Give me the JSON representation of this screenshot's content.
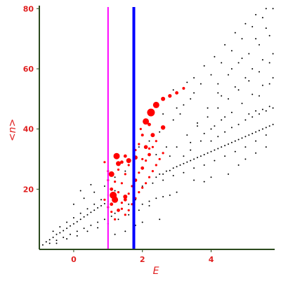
{
  "chart_data": {
    "type": "scatter",
    "xlabel": "E",
    "ylabel": "<n>",
    "xlim": [
      -1.0,
      5.85
    ],
    "ylim": [
      0,
      81
    ],
    "x_ticks": [
      0,
      2,
      4
    ],
    "x_tick_labels": [
      "0",
      "2",
      "4"
    ],
    "y_ticks": [
      20,
      40,
      60,
      80
    ],
    "y_tick_labels": [
      "20",
      "40",
      "60",
      "80"
    ],
    "grid": false,
    "legend": "none",
    "colors": {
      "axes": "#2b4a1d",
      "labels": "#e02020",
      "background_points": "#000000",
      "highlight_points": "#ff0000",
      "magenta_line": "#ff00ff",
      "blue_line": "#0000ff"
    },
    "vertical_lines": [
      {
        "x": 1.0,
        "color": "#ff00ff",
        "style": "thin"
      },
      {
        "x": 1.75,
        "color": "#0000ff",
        "style": "thick"
      }
    ],
    "series": [
      {
        "color": "#000000",
        "marker": "dot",
        "points": [
          [
            -0.9,
            1.5
          ],
          [
            -0.8,
            2.5
          ],
          [
            -0.7,
            3.2
          ],
          [
            -0.6,
            4.0
          ],
          [
            -0.5,
            5.0
          ],
          [
            -0.4,
            5.5
          ],
          [
            -0.3,
            6.2
          ],
          [
            -0.2,
            7.0
          ],
          [
            -0.1,
            7.8
          ],
          [
            0.0,
            8.5
          ],
          [
            0.1,
            9.2
          ],
          [
            0.2,
            10.0
          ],
          [
            0.3,
            10.8
          ],
          [
            0.4,
            11.5
          ],
          [
            0.5,
            12.3
          ],
          [
            0.6,
            13.0
          ],
          [
            0.7,
            13.8
          ],
          [
            0.8,
            14.5
          ],
          [
            0.9,
            15.2
          ],
          [
            1.0,
            16.0
          ],
          [
            -0.7,
            2.0
          ],
          [
            -0.5,
            3.0
          ],
          [
            -0.3,
            4.0
          ],
          [
            -0.1,
            5.0
          ],
          [
            0.1,
            6.0
          ],
          [
            0.3,
            7.0
          ],
          [
            0.5,
            8.0
          ],
          [
            0.7,
            9.0
          ],
          [
            0.9,
            10.0
          ],
          [
            1.1,
            11.0
          ],
          [
            -0.6,
            6.0
          ],
          [
            -0.4,
            7.5
          ],
          [
            -0.2,
            9.0
          ],
          [
            0.0,
            10.5
          ],
          [
            0.2,
            12.0
          ],
          [
            0.4,
            13.5
          ],
          [
            0.6,
            15.0
          ],
          [
            0.8,
            16.5
          ],
          [
            1.0,
            18.0
          ],
          [
            1.2,
            19.5
          ],
          [
            -0.5,
            2.0
          ],
          [
            -0.2,
            3.5
          ],
          [
            0.1,
            4.5
          ],
          [
            0.4,
            6.0
          ],
          [
            0.7,
            7.2
          ],
          [
            1.0,
            8.5
          ],
          [
            1.3,
            10.0
          ],
          [
            1.6,
            11.5
          ],
          [
            1.9,
            13.0
          ],
          [
            2.2,
            14.5
          ],
          [
            0.0,
            15.0
          ],
          [
            0.3,
            17.0
          ],
          [
            0.6,
            19.0
          ],
          [
            0.9,
            21.0
          ],
          [
            0.2,
            19.5
          ],
          [
            0.5,
            21.5
          ],
          [
            1.2,
            24.0
          ],
          [
            1.5,
            26.0
          ],
          [
            1.2,
            12.0
          ],
          [
            1.4,
            13.5
          ],
          [
            1.6,
            15.0
          ],
          [
            1.8,
            16.5
          ],
          [
            2.0,
            15.0
          ],
          [
            2.2,
            16.0
          ],
          [
            2.4,
            17.0
          ],
          [
            2.6,
            17.5
          ],
          [
            2.8,
            18.0
          ],
          [
            3.0,
            19.0
          ],
          [
            2.0,
            21.0
          ],
          [
            2.3,
            22.0
          ],
          [
            2.6,
            23.0
          ],
          [
            2.9,
            24.5
          ],
          [
            3.2,
            25.5
          ],
          [
            3.5,
            27.0
          ],
          [
            3.8,
            28.0
          ],
          [
            4.1,
            29.5
          ],
          [
            4.4,
            31.0
          ],
          [
            4.7,
            32.5
          ],
          [
            5.0,
            34.0
          ],
          [
            5.3,
            36.0
          ],
          [
            5.6,
            38.0
          ],
          [
            2.5,
            25.0
          ],
          [
            2.7,
            26.0
          ],
          [
            2.9,
            27.0
          ],
          [
            3.1,
            28.0
          ],
          [
            3.3,
            29.0
          ],
          [
            3.5,
            30.0
          ],
          [
            3.7,
            31.0
          ],
          [
            3.9,
            32.0
          ],
          [
            4.1,
            33.0
          ],
          [
            4.3,
            34.0
          ],
          [
            4.5,
            35.0
          ],
          [
            4.7,
            36.0
          ],
          [
            4.9,
            37.0
          ],
          [
            5.1,
            38.0
          ],
          [
            5.3,
            39.0
          ],
          [
            5.5,
            40.0
          ],
          [
            5.7,
            41.0
          ],
          [
            2.4,
            24.0
          ],
          [
            2.6,
            25.0
          ],
          [
            2.8,
            26.2
          ],
          [
            3.0,
            27.5
          ],
          [
            3.2,
            28.5
          ],
          [
            3.4,
            29.5
          ],
          [
            3.6,
            30.5
          ],
          [
            3.8,
            31.5
          ],
          [
            4.0,
            32.5
          ],
          [
            4.2,
            33.5
          ],
          [
            4.4,
            34.5
          ],
          [
            4.6,
            35.5
          ],
          [
            4.8,
            36.5
          ],
          [
            5.0,
            37.5
          ],
          [
            5.2,
            38.5
          ],
          [
            5.4,
            39.5
          ],
          [
            5.6,
            40.5
          ],
          [
            5.8,
            41.5
          ],
          [
            4.0,
            36.0
          ],
          [
            4.2,
            37.5
          ],
          [
            4.4,
            39.0
          ],
          [
            4.6,
            40.5
          ],
          [
            4.8,
            41.5
          ],
          [
            5.0,
            43.0
          ],
          [
            5.2,
            44.0
          ],
          [
            5.4,
            45.0
          ],
          [
            5.6,
            46.0
          ],
          [
            5.8,
            47.0
          ],
          [
            5.1,
            45.0
          ],
          [
            5.3,
            46.0
          ],
          [
            5.5,
            46.5
          ],
          [
            5.7,
            47.5
          ],
          [
            2.8,
            31.0
          ],
          [
            3.0,
            34.0
          ],
          [
            3.3,
            38.0
          ],
          [
            3.6,
            41.0
          ],
          [
            3.9,
            44.0
          ],
          [
            4.2,
            47.0
          ],
          [
            4.5,
            50.0
          ],
          [
            4.8,
            53.0
          ],
          [
            5.1,
            56.0
          ],
          [
            5.4,
            59.0
          ],
          [
            5.7,
            62.0
          ],
          [
            3.4,
            33.0
          ],
          [
            3.7,
            36.0
          ],
          [
            4.0,
            40.0
          ],
          [
            4.3,
            43.0
          ],
          [
            4.6,
            45.5
          ],
          [
            4.9,
            48.5
          ],
          [
            5.2,
            51.5
          ],
          [
            5.5,
            54.5
          ],
          [
            5.8,
            57.0
          ],
          [
            3.1,
            45.0
          ],
          [
            3.4,
            50.0
          ],
          [
            3.7,
            55.0
          ],
          [
            4.0,
            58.0
          ],
          [
            4.3,
            62.0
          ],
          [
            4.6,
            66.0
          ],
          [
            4.9,
            70.0
          ],
          [
            5.2,
            74.0
          ],
          [
            5.5,
            77.0
          ],
          [
            5.8,
            80.0
          ],
          [
            3.5,
            57.0
          ],
          [
            3.8,
            61.0
          ],
          [
            4.1,
            64.0
          ],
          [
            4.4,
            68.0
          ],
          [
            4.7,
            72.0
          ],
          [
            5.0,
            75.0
          ],
          [
            5.3,
            78.0
          ],
          [
            5.6,
            80.0
          ],
          [
            4.2,
            55.0
          ],
          [
            4.5,
            58.0
          ],
          [
            4.8,
            62.0
          ],
          [
            5.1,
            65.0
          ],
          [
            5.4,
            68.0
          ],
          [
            5.7,
            71.0
          ],
          [
            4.6,
            60.0
          ],
          [
            4.9,
            63.5
          ],
          [
            5.2,
            60.0
          ],
          [
            5.5,
            63.0
          ],
          [
            5.8,
            65.0
          ],
          [
            5.3,
            70.0
          ],
          [
            5.6,
            73.5
          ],
          [
            4.3,
            51.0
          ],
          [
            4.7,
            54.0
          ],
          [
            5.0,
            57.0
          ],
          [
            5.4,
            51.0
          ],
          [
            5.7,
            55.0
          ],
          [
            5.0,
            30.0
          ],
          [
            5.3,
            32.0
          ],
          [
            5.6,
            34.0
          ],
          [
            4.5,
            25.0
          ],
          [
            4.8,
            28.0
          ],
          [
            3.8,
            38.5
          ],
          [
            4.1,
            41.0
          ],
          [
            4.4,
            44.0
          ],
          [
            3.6,
            42.0
          ],
          [
            3.9,
            47.0
          ],
          [
            4.2,
            52.0
          ],
          [
            1.9,
            34.0
          ],
          [
            2.2,
            36.0
          ],
          [
            2.5,
            39.0
          ],
          [
            2.9,
            43.0
          ],
          [
            3.2,
            48.0
          ],
          [
            3.5,
            52.0
          ],
          [
            2.9,
            53.0
          ],
          [
            3.3,
            55.5
          ],
          [
            3.0,
            47.0
          ],
          [
            2.6,
            45.0
          ],
          [
            3.2,
            31.0
          ],
          [
            3.4,
            35.5
          ],
          [
            2.7,
            34.0
          ],
          [
            2.4,
            31.5
          ],
          [
            1.8,
            8.0
          ],
          [
            2.0,
            9.0
          ],
          [
            1.5,
            6.0
          ],
          [
            1.2,
            5.0
          ],
          [
            2.5,
            10.0
          ],
          [
            3.5,
            23.0
          ],
          [
            3.8,
            22.5
          ],
          [
            4.0,
            24.0
          ]
        ]
      },
      {
        "color": "#ff0000",
        "marker": "sized-dot",
        "points": [
          [
            0.9,
            29.0,
            1.6
          ],
          [
            1.0,
            23.0,
            1.6
          ],
          [
            1.1,
            20.0,
            2.4
          ],
          [
            1.2,
            22.5,
            1.6
          ],
          [
            1.0,
            26.0,
            1.6
          ],
          [
            0.9,
            16.5,
            1.6
          ],
          [
            1.0,
            14.0,
            1.6
          ],
          [
            1.1,
            12.5,
            1.6
          ],
          [
            1.2,
            10.0,
            1.6
          ],
          [
            1.3,
            13.0,
            2.4
          ],
          [
            1.4,
            15.5,
            1.6
          ],
          [
            1.2,
            17.5,
            2.4
          ],
          [
            1.1,
            15.0,
            2.4
          ],
          [
            1.3,
            19.0,
            1.6
          ],
          [
            1.4,
            22.0,
            1.6
          ],
          [
            1.5,
            25.0,
            1.6
          ],
          [
            1.6,
            28.0,
            1.6
          ],
          [
            1.6,
            18.5,
            1.6
          ],
          [
            1.5,
            16.5,
            2.4
          ],
          [
            1.4,
            13.5,
            1.6
          ],
          [
            1.7,
            21.0,
            1.6
          ],
          [
            1.8,
            23.0,
            2.4
          ],
          [
            1.9,
            25.5,
            1.6
          ],
          [
            2.0,
            27.0,
            2.4
          ],
          [
            2.1,
            29.5,
            1.6
          ],
          [
            2.2,
            31.5,
            2.4
          ],
          [
            2.3,
            34.0,
            1.6
          ],
          [
            2.4,
            36.0,
            1.6
          ],
          [
            2.0,
            20.5,
            1.6
          ],
          [
            2.1,
            22.0,
            1.6
          ],
          [
            2.2,
            24.0,
            1.6
          ],
          [
            2.3,
            26.0,
            1.6
          ],
          [
            2.4,
            28.0,
            1.6
          ],
          [
            2.5,
            30.0,
            1.6
          ],
          [
            2.6,
            32.0,
            1.6
          ],
          [
            1.9,
            19.0,
            1.6
          ],
          [
            1.8,
            17.0,
            1.6
          ],
          [
            1.7,
            15.0,
            1.6
          ],
          [
            1.6,
            13.0,
            1.6
          ],
          [
            1.5,
            11.5,
            1.6
          ],
          [
            1.3,
            26.5,
            1.6
          ],
          [
            1.4,
            29.0,
            2.4
          ],
          [
            1.5,
            31.0,
            2.4
          ],
          [
            1.8,
            33.0,
            1.6
          ],
          [
            1.9,
            35.0,
            1.6
          ],
          [
            2.0,
            30.0,
            1.6
          ],
          [
            2.2,
            33.5,
            1.6
          ],
          [
            1.25,
            31.0,
            4.5
          ],
          [
            1.3,
            28.5,
            3.5
          ],
          [
            1.6,
            29.5,
            3.5
          ],
          [
            1.1,
            25.0,
            4.0
          ],
          [
            1.15,
            18.0,
            5.0
          ],
          [
            1.2,
            16.5,
            4.5
          ],
          [
            1.5,
            17.5,
            3.0
          ],
          [
            1.8,
            30.5,
            3.0
          ],
          [
            2.1,
            34.0,
            2.8
          ],
          [
            2.3,
            38.0,
            3.0
          ],
          [
            2.6,
            40.5,
            3.2
          ],
          [
            2.1,
            42.5,
            4.5
          ],
          [
            2.25,
            45.5,
            5.5
          ],
          [
            2.4,
            48.0,
            4.5
          ],
          [
            2.6,
            50.0,
            3.0
          ],
          [
            2.8,
            51.0,
            2.6
          ],
          [
            3.0,
            52.0,
            2.4
          ],
          [
            3.2,
            53.5,
            2.0
          ],
          [
            2.0,
            38.0,
            2.0
          ],
          [
            2.2,
            41.5,
            2.4
          ],
          [
            1.95,
            40.0,
            1.6
          ]
        ]
      }
    ]
  }
}
